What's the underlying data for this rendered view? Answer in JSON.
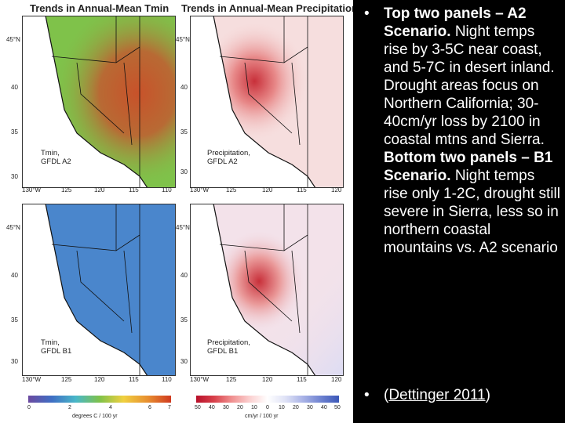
{
  "titles": {
    "left": "Trends in Annual-Mean Tmin",
    "right": "Trends in Annual-Mean Precipitation"
  },
  "panels": [
    {
      "variable": "Tmin,",
      "scenario": "GFDL A2",
      "fill": "#7fc24a"
    },
    {
      "variable": "Precipitation,",
      "scenario": "GFDL A2",
      "fill": "#f6dede"
    },
    {
      "variable": "Tmin,",
      "scenario": "GFDL B1",
      "fill": "#4a86cc"
    },
    {
      "variable": "Precipitation,",
      "scenario": "GFDL B1",
      "fill": "#f3e2ea"
    }
  ],
  "axes": {
    "lat_ticks": [
      "45°N",
      "40",
      "35",
      "30"
    ],
    "lon_ticks": [
      "130°W",
      "125",
      "120",
      "115",
      "110"
    ],
    "lon_ticks_right": [
      "130°W",
      "125",
      "120",
      "115",
      "120"
    ]
  },
  "colorbars": {
    "temperature": {
      "ticks": [
        "0",
        "2",
        "4",
        "6",
        "7"
      ],
      "unit": "degrees C / 100 yr",
      "colors": [
        "#6b4aa0",
        "#3f6fc4",
        "#49b7c8",
        "#7fc24a",
        "#f0d040",
        "#e89030",
        "#d03a20"
      ]
    },
    "precipitation": {
      "ticks": [
        "50",
        "40",
        "30",
        "20",
        "10",
        "0",
        "10",
        "20",
        "30",
        "40",
        "50"
      ],
      "unit": "cm/yr / 100 yr",
      "colors": [
        "#b8102a",
        "#d8404a",
        "#f09090",
        "#fbd0d0",
        "#ffffff",
        "#dfe2f6",
        "#a8b2e6",
        "#6e82d0",
        "#3b58b8"
      ]
    }
  },
  "bullets": {
    "first": {
      "bold_1": "Top two panels – A2 Scenario.",
      "text_1": " Night temps rise by 3-5C near coast, and 5-7C in desert inland. Drought areas focus on Northern California; 30-40cm/yr loss by 2100 in coastal mtns and Sierra. ",
      "bold_2": "Bottom two panels – B1 Scenario.",
      "text_2": " Night temps rise only 1-2C, drought still severe in Sierra, less so in northern coastal mountains vs. A2 scenario"
    },
    "second": {
      "open": "(",
      "link": "Dettinger 2011",
      "close": ")"
    }
  },
  "colors": {
    "background": "#000000",
    "text": "#ffffff",
    "figure_background": "#ffffff"
  }
}
